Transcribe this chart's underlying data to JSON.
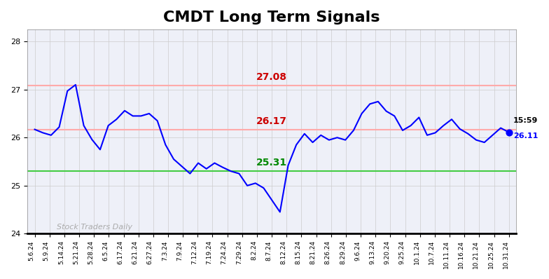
{
  "title": "CMDT Long Term Signals",
  "title_fontsize": 16,
  "title_fontweight": "bold",
  "line_color": "blue",
  "line_width": 1.5,
  "background_color": "#ffffff",
  "plot_background_color": "#eef0f8",
  "grid_color": "#cccccc",
  "ylim": [
    24.0,
    28.25
  ],
  "yticks": [
    24,
    25,
    26,
    27,
    28
  ],
  "red_line_upper": 27.08,
  "red_line_lower": 26.17,
  "green_line": 25.31,
  "red_line_color": "#ffaaaa",
  "green_line_color": "#44cc44",
  "label_red_upper": "27.08",
  "label_red_lower": "26.17",
  "label_green": "25.31",
  "label_red_upper_color": "#cc0000",
  "label_red_lower_color": "#cc0000",
  "label_green_color": "#008800",
  "annotation_time": "15:59",
  "annotation_price": "26.11",
  "annotation_price_color": "blue",
  "annotation_time_color": "black",
  "watermark": "Stock Traders Daily",
  "watermark_color": "#aaaaaa",
  "dot_color": "blue",
  "dot_size": 40,
  "xlabel_rotation": 90,
  "x_labels": [
    "5.6.24",
    "5.9.24",
    "5.14.24",
    "5.21.24",
    "5.28.24",
    "6.5.24",
    "6.17.24",
    "6.21.24",
    "6.27.24",
    "7.3.24",
    "7.9.24",
    "7.12.24",
    "7.19.24",
    "7.24.24",
    "7.29.24",
    "8.2.24",
    "8.7.24",
    "8.12.24",
    "8.15.24",
    "8.21.24",
    "8.26.24",
    "8.29.24",
    "9.6.24",
    "9.13.24",
    "9.20.24",
    "9.25.24",
    "10.1.24",
    "10.7.24",
    "10.11.24",
    "10.16.24",
    "10.21.24",
    "10.25.24",
    "10.31.24"
  ],
  "y_values": [
    26.17,
    26.1,
    26.05,
    26.22,
    26.97,
    27.1,
    26.25,
    25.96,
    25.75,
    26.25,
    26.38,
    26.56,
    26.45,
    26.45,
    26.5,
    26.35,
    25.85,
    25.55,
    25.4,
    25.25,
    25.47,
    25.35,
    25.47,
    25.38,
    25.3,
    25.25,
    25.0,
    25.05,
    24.95,
    24.7,
    24.45,
    25.42,
    25.85,
    26.08,
    25.9,
    26.05,
    25.95,
    26.0,
    25.95,
    26.15,
    26.5,
    26.7,
    26.75,
    26.55,
    26.45,
    26.15,
    26.25,
    26.42,
    26.05,
    26.1,
    26.25,
    26.38,
    26.18,
    26.08,
    25.95,
    25.9,
    26.05,
    26.2,
    26.11
  ]
}
